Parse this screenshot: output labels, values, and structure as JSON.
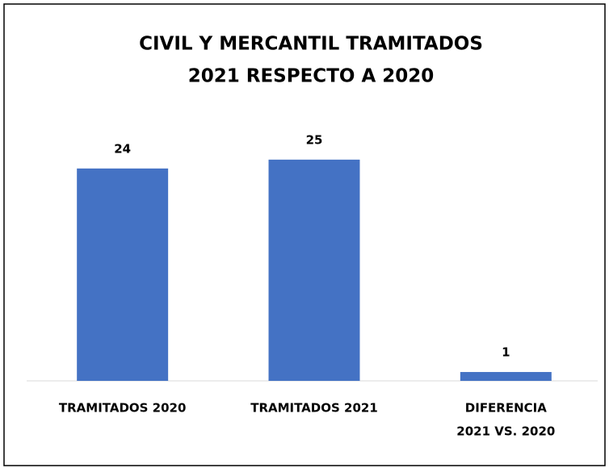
{
  "chart_data": {
    "type": "bar",
    "title": [
      "CIVIL Y MERCANTIL TRAMITADOS",
      "2021 RESPECTO A 2020"
    ],
    "categories": [
      [
        "TRAMITADOS 2020"
      ],
      [
        "TRAMITADOS 2021"
      ],
      [
        "DIFERENCIA",
        "2021 VS. 2020"
      ]
    ],
    "values": [
      24,
      25,
      1
    ],
    "color": "#4472c4",
    "ylim": [
      0,
      30
    ]
  }
}
